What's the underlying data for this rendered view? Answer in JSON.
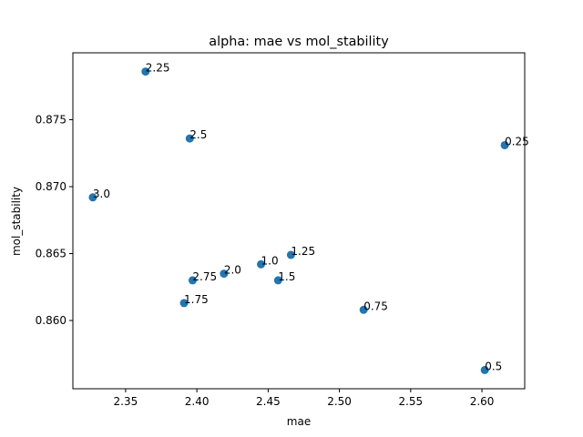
{
  "chart_data": {
    "type": "scatter",
    "title": "alpha: mae vs mol_stability",
    "xlabel": "mae",
    "ylabel": "mol_stability",
    "xlim": [
      2.313,
      2.63
    ],
    "ylim": [
      0.8549,
      0.88
    ],
    "xticks": [
      "2.35",
      "2.40",
      "2.45",
      "2.50",
      "2.55",
      "2.60"
    ],
    "yticks": [
      "0.860",
      "0.865",
      "0.870",
      "0.875"
    ],
    "grid": false,
    "marker_color": "#1f77b4",
    "points": [
      {
        "label": "0.25",
        "x": 2.616,
        "y": 0.8731
      },
      {
        "label": "0.5",
        "x": 2.602,
        "y": 0.8563
      },
      {
        "label": "0.75",
        "x": 2.517,
        "y": 0.8608
      },
      {
        "label": "1.0",
        "x": 2.445,
        "y": 0.8642
      },
      {
        "label": "1.25",
        "x": 2.466,
        "y": 0.8649
      },
      {
        "label": "1.5",
        "x": 2.457,
        "y": 0.863
      },
      {
        "label": "1.75",
        "x": 2.391,
        "y": 0.8613
      },
      {
        "label": "2.0",
        "x": 2.419,
        "y": 0.8635
      },
      {
        "label": "2.25",
        "x": 2.364,
        "y": 0.8786
      },
      {
        "label": "2.5",
        "x": 2.395,
        "y": 0.8736
      },
      {
        "label": "2.75",
        "x": 2.397,
        "y": 0.863
      },
      {
        "label": "3.0",
        "x": 2.327,
        "y": 0.8692
      }
    ]
  }
}
